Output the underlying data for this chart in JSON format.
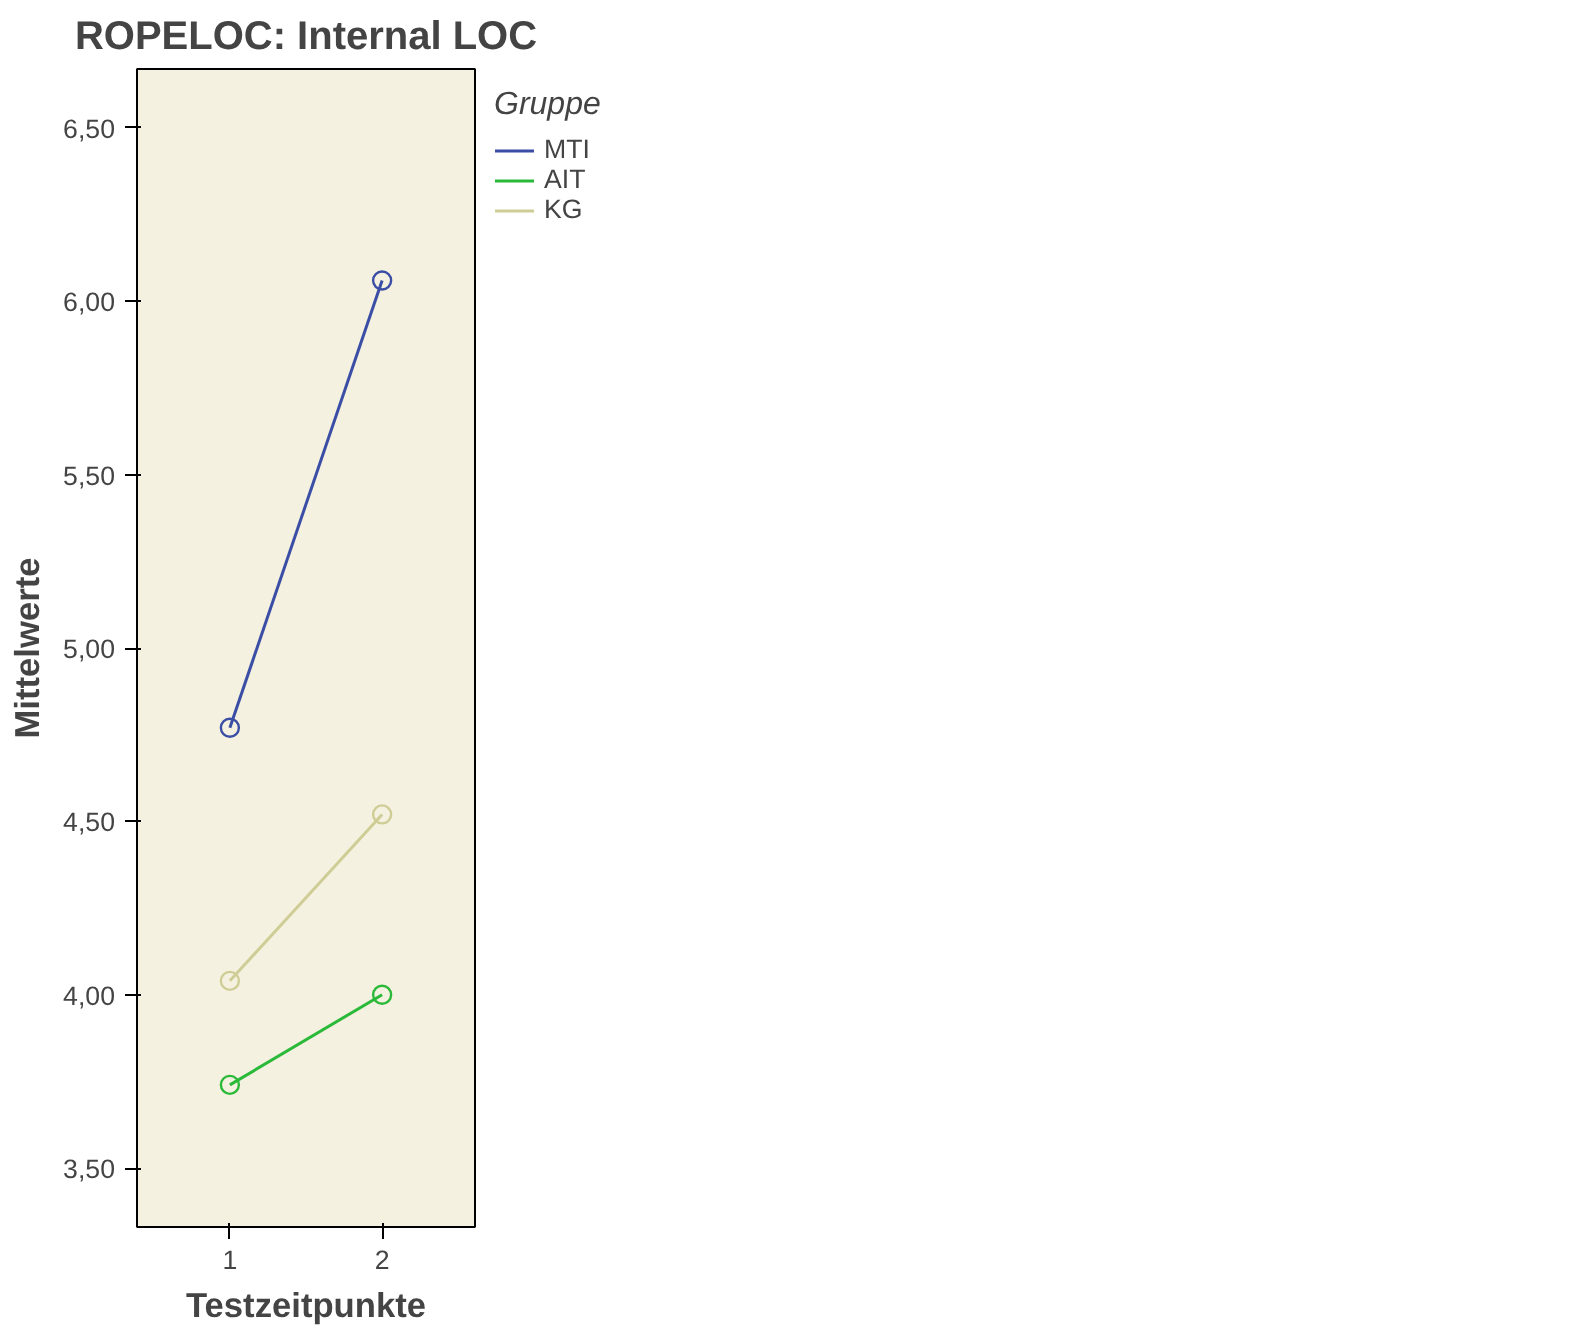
{
  "chart_data": {
    "type": "line",
    "title": "ROPELOC: Internal LOC",
    "xlabel": "Testzeitpunkte",
    "ylabel": "Mittelwerte",
    "legend_title": "Gruppe",
    "legend": "right",
    "marker": "circle",
    "grid": false,
    "x": [
      1,
      2
    ],
    "xlim": [
      0.39,
      2.61
    ],
    "xticks": [
      1,
      2
    ],
    "ylim": [
      3.33,
      6.67
    ],
    "yticks": [
      {
        "value": 3.5,
        "label": "3,50"
      },
      {
        "value": 4.0,
        "label": "4,00"
      },
      {
        "value": 4.5,
        "label": "4,50"
      },
      {
        "value": 5.0,
        "label": "5,00"
      },
      {
        "value": 5.5,
        "label": "5,50"
      },
      {
        "value": 6.0,
        "label": "6,00"
      },
      {
        "value": 6.5,
        "label": "6,50"
      }
    ],
    "series": [
      {
        "name": "MTI",
        "color": "#3b4ea6",
        "values": [
          4.77,
          6.06
        ]
      },
      {
        "name": "AIT",
        "color": "#2ab939",
        "values": [
          3.74,
          4.0
        ]
      },
      {
        "name": "KG",
        "color": "#cfcd96",
        "values": [
          4.04,
          4.52
        ]
      }
    ]
  }
}
